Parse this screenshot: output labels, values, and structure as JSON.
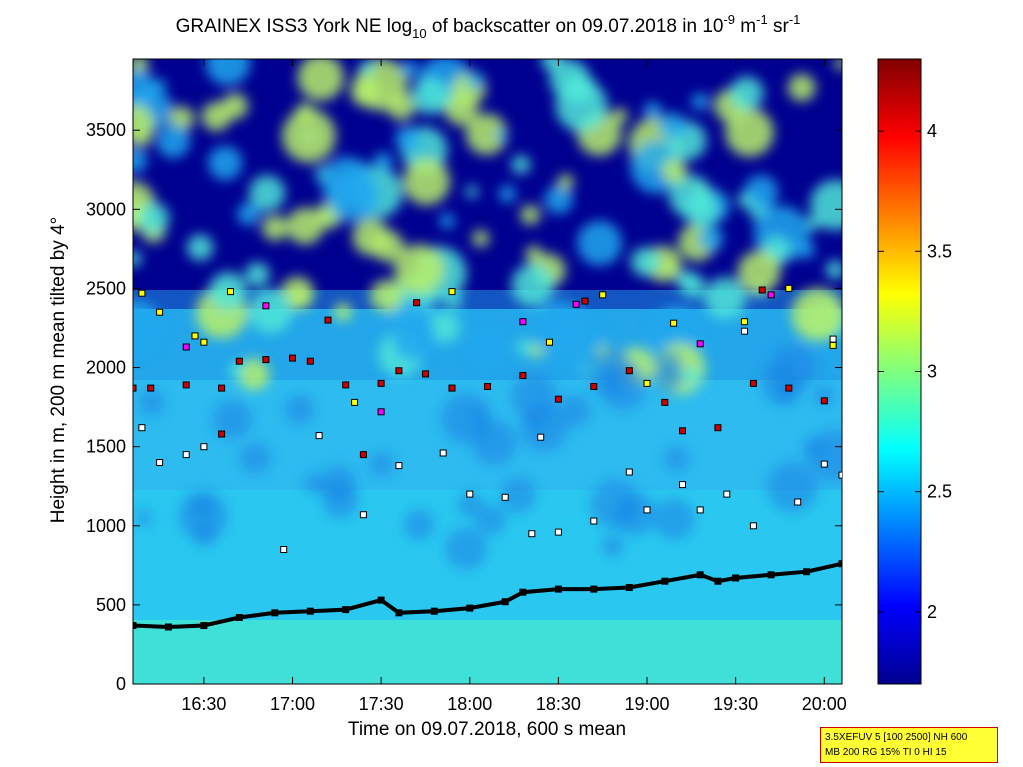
{
  "chart_data": {
    "type": "heatmap",
    "title_parts": {
      "prefix": "GRAINEX ISS3 York NE log",
      "sub": "10",
      "middle": " of backscatter on 09.07.2018 in 10",
      "sup1": "-9",
      "unit_m": " m",
      "sup2": "-1",
      "unit_sr": " sr",
      "sup3": "-1"
    },
    "xlabel": "Time on 09.07.2018, 600 s mean",
    "ylabel": "Height in m, 200 m mean tilted by 4°",
    "x_ticks": [
      "16:30",
      "17:00",
      "17:30",
      "18:00",
      "18:30",
      "19:00",
      "19:30",
      "20:00"
    ],
    "x_tick_hours": [
      16.5,
      17.0,
      17.5,
      18.0,
      18.5,
      19.0,
      19.5,
      20.0
    ],
    "xlim_hours": [
      16.1,
      20.1
    ],
    "y_ticks": [
      0,
      500,
      1000,
      1500,
      2000,
      2500,
      3000,
      3500
    ],
    "ylim": [
      0,
      3950
    ],
    "colorbar": {
      "ticks": [
        2,
        2.5,
        3,
        3.5,
        4
      ],
      "range": [
        1.7,
        4.3
      ],
      "colormap": "jet"
    },
    "series": [
      {
        "marker": "black-square",
        "points": [
          [
            16.1,
            370
          ],
          [
            16.3,
            360
          ],
          [
            16.5,
            370
          ],
          [
            16.7,
            420
          ],
          [
            16.9,
            450
          ],
          [
            17.1,
            460
          ],
          [
            17.3,
            470
          ],
          [
            17.5,
            530
          ],
          [
            17.6,
            450
          ],
          [
            17.8,
            460
          ],
          [
            18.0,
            480
          ],
          [
            18.2,
            520
          ],
          [
            18.3,
            580
          ],
          [
            18.5,
            600
          ],
          [
            18.7,
            600
          ],
          [
            18.9,
            610
          ],
          [
            19.1,
            650
          ],
          [
            19.3,
            690
          ],
          [
            19.4,
            650
          ],
          [
            19.5,
            670
          ],
          [
            19.7,
            690
          ],
          [
            19.9,
            710
          ],
          [
            20.1,
            760
          ]
        ]
      },
      {
        "marker": "white-square",
        "points": [
          [
            16.15,
            1620
          ],
          [
            16.25,
            1400
          ],
          [
            16.4,
            1450
          ],
          [
            16.5,
            1500
          ],
          [
            16.95,
            850
          ],
          [
            17.4,
            1070
          ],
          [
            17.6,
            1380
          ],
          [
            17.85,
            1460
          ],
          [
            18.0,
            1200
          ],
          [
            18.2,
            1180
          ],
          [
            18.35,
            950
          ],
          [
            18.5,
            960
          ],
          [
            18.7,
            1030
          ],
          [
            18.9,
            1340
          ],
          [
            19.0,
            1100
          ],
          [
            19.2,
            1260
          ],
          [
            19.3,
            1100
          ],
          [
            19.45,
            1200
          ],
          [
            19.6,
            1000
          ],
          [
            19.85,
            1150
          ],
          [
            20.0,
            1390
          ],
          [
            20.1,
            1320
          ],
          [
            20.05,
            2180
          ],
          [
            19.55,
            2230
          ],
          [
            18.4,
            1560
          ],
          [
            17.15,
            1570
          ]
        ]
      },
      {
        "marker": "red-square",
        "points": [
          [
            16.1,
            1870
          ],
          [
            16.2,
            1870
          ],
          [
            16.4,
            1890
          ],
          [
            16.6,
            1870
          ],
          [
            16.7,
            2040
          ],
          [
            16.85,
            2050
          ],
          [
            17.0,
            2060
          ],
          [
            17.1,
            2040
          ],
          [
            17.3,
            1890
          ],
          [
            17.5,
            1900
          ],
          [
            17.6,
            1980
          ],
          [
            17.75,
            1960
          ],
          [
            17.9,
            1870
          ],
          [
            18.1,
            1880
          ],
          [
            18.3,
            1950
          ],
          [
            18.5,
            1800
          ],
          [
            18.7,
            1880
          ],
          [
            18.9,
            1980
          ],
          [
            19.1,
            1780
          ],
          [
            19.2,
            1600
          ],
          [
            19.4,
            1620
          ],
          [
            19.6,
            1900
          ],
          [
            19.8,
            1870
          ],
          [
            20.0,
            1790
          ],
          [
            17.2,
            2300
          ],
          [
            17.4,
            1450
          ],
          [
            16.6,
            1580
          ],
          [
            19.65,
            2490
          ],
          [
            18.65,
            2420
          ],
          [
            17.7,
            2410
          ]
        ]
      },
      {
        "marker": "yellow-square",
        "points": [
          [
            16.15,
            2470
          ],
          [
            16.25,
            2350
          ],
          [
            16.45,
            2200
          ],
          [
            16.5,
            2160
          ],
          [
            16.65,
            2480
          ],
          [
            17.9,
            2480
          ],
          [
            18.45,
            2160
          ],
          [
            18.75,
            2460
          ],
          [
            19.15,
            2280
          ],
          [
            19.55,
            2290
          ],
          [
            19.8,
            2500
          ],
          [
            20.05,
            2140
          ],
          [
            19.0,
            1900
          ],
          [
            17.35,
            1780
          ]
        ]
      },
      {
        "marker": "magenta-square",
        "points": [
          [
            16.4,
            2130
          ],
          [
            17.5,
            1720
          ],
          [
            18.3,
            2290
          ],
          [
            18.6,
            2400
          ],
          [
            19.3,
            2150
          ],
          [
            19.7,
            2460
          ],
          [
            16.85,
            2390
          ]
        ]
      }
    ]
  },
  "info_box": {
    "line1": "3.5XEFUV 5 [100 2500] NH 600",
    "line2": "MB 200 RG 15% TI 0 HI 15"
  }
}
